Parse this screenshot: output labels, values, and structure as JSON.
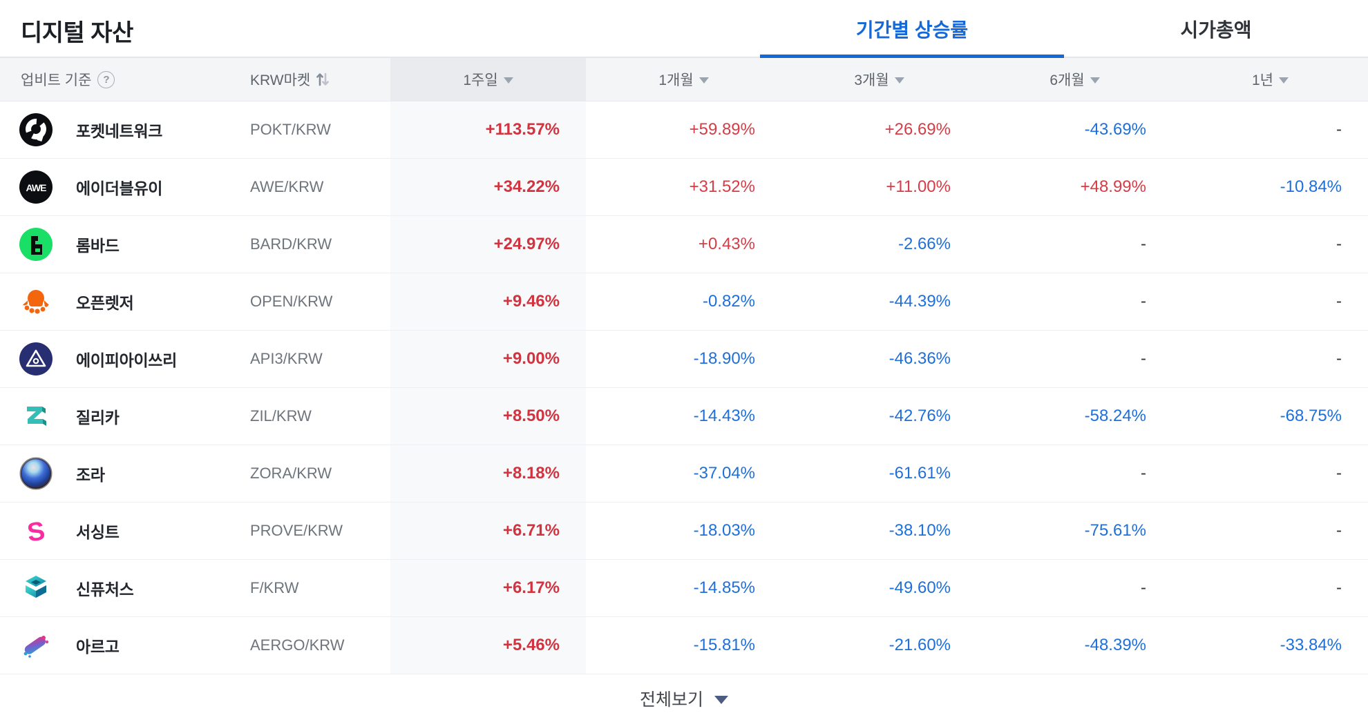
{
  "colors": {
    "accent": "#1568d8",
    "up": "#d63c46",
    "up_bold": "#d2333f",
    "down": "#1e6fd9"
  },
  "topbar": {
    "title": "디지털 자산",
    "tabs": [
      {
        "label": "기간별 상승률",
        "active": true
      },
      {
        "label": "시가총액",
        "active": false
      }
    ]
  },
  "table": {
    "source_label": "업비트 기준",
    "help_icon": "question-circle-icon",
    "market_label": "KRW마켓",
    "sort_icon": "swap-vertical-icon",
    "periods": [
      "1주일",
      "1개월",
      "3개월",
      "6개월",
      "1년"
    ],
    "rows": [
      {
        "icon": "pokt-logo",
        "name": "포켓네트워크",
        "pair": "POKT/KRW",
        "values": [
          {
            "text": "+113.57%",
            "dir": "up"
          },
          {
            "text": "+59.89%",
            "dir": "up"
          },
          {
            "text": "+26.69%",
            "dir": "up"
          },
          {
            "text": "-43.69%",
            "dir": "down"
          },
          {
            "text": "-",
            "dir": "flat"
          }
        ]
      },
      {
        "icon": "awe-logo",
        "name": "에이더블유이",
        "pair": "AWE/KRW",
        "values": [
          {
            "text": "+34.22%",
            "dir": "up"
          },
          {
            "text": "+31.52%",
            "dir": "up"
          },
          {
            "text": "+11.00%",
            "dir": "up"
          },
          {
            "text": "+48.99%",
            "dir": "up"
          },
          {
            "text": "-10.84%",
            "dir": "down"
          }
        ]
      },
      {
        "icon": "bard-logo",
        "name": "롬바드",
        "pair": "BARD/KRW",
        "values": [
          {
            "text": "+24.97%",
            "dir": "up"
          },
          {
            "text": "+0.43%",
            "dir": "up"
          },
          {
            "text": "-2.66%",
            "dir": "down"
          },
          {
            "text": "-",
            "dir": "flat"
          },
          {
            "text": "-",
            "dir": "flat"
          }
        ]
      },
      {
        "icon": "open-logo",
        "name": "오픈렛저",
        "pair": "OPEN/KRW",
        "values": [
          {
            "text": "+9.46%",
            "dir": "up"
          },
          {
            "text": "-0.82%",
            "dir": "down"
          },
          {
            "text": "-44.39%",
            "dir": "down"
          },
          {
            "text": "-",
            "dir": "flat"
          },
          {
            "text": "-",
            "dir": "flat"
          }
        ]
      },
      {
        "icon": "api3-logo",
        "name": "에이피아이쓰리",
        "pair": "API3/KRW",
        "values": [
          {
            "text": "+9.00%",
            "dir": "up"
          },
          {
            "text": "-18.90%",
            "dir": "down"
          },
          {
            "text": "-46.36%",
            "dir": "down"
          },
          {
            "text": "-",
            "dir": "flat"
          },
          {
            "text": "-",
            "dir": "flat"
          }
        ]
      },
      {
        "icon": "zil-logo",
        "name": "질리카",
        "pair": "ZIL/KRW",
        "values": [
          {
            "text": "+8.50%",
            "dir": "up"
          },
          {
            "text": "-14.43%",
            "dir": "down"
          },
          {
            "text": "-42.76%",
            "dir": "down"
          },
          {
            "text": "-58.24%",
            "dir": "down"
          },
          {
            "text": "-68.75%",
            "dir": "down"
          }
        ]
      },
      {
        "icon": "zora-logo",
        "name": "조라",
        "pair": "ZORA/KRW",
        "values": [
          {
            "text": "+8.18%",
            "dir": "up"
          },
          {
            "text": "-37.04%",
            "dir": "down"
          },
          {
            "text": "-61.61%",
            "dir": "down"
          },
          {
            "text": "-",
            "dir": "flat"
          },
          {
            "text": "-",
            "dir": "flat"
          }
        ]
      },
      {
        "icon": "prove-logo",
        "name": "서싱트",
        "pair": "PROVE/KRW",
        "values": [
          {
            "text": "+6.71%",
            "dir": "up"
          },
          {
            "text": "-18.03%",
            "dir": "down"
          },
          {
            "text": "-38.10%",
            "dir": "down"
          },
          {
            "text": "-75.61%",
            "dir": "down"
          },
          {
            "text": "-",
            "dir": "flat"
          }
        ]
      },
      {
        "icon": "f-logo",
        "name": "신퓨처스",
        "pair": "F/KRW",
        "values": [
          {
            "text": "+6.17%",
            "dir": "up"
          },
          {
            "text": "-14.85%",
            "dir": "down"
          },
          {
            "text": "-49.60%",
            "dir": "down"
          },
          {
            "text": "-",
            "dir": "flat"
          },
          {
            "text": "-",
            "dir": "flat"
          }
        ]
      },
      {
        "icon": "aergo-logo",
        "name": "아르고",
        "pair": "AERGO/KRW",
        "values": [
          {
            "text": "+5.46%",
            "dir": "up"
          },
          {
            "text": "-15.81%",
            "dir": "down"
          },
          {
            "text": "-21.60%",
            "dir": "down"
          },
          {
            "text": "-48.39%",
            "dir": "down"
          },
          {
            "text": "-33.84%",
            "dir": "down"
          }
        ]
      }
    ]
  },
  "footer": {
    "label": "전체보기"
  }
}
